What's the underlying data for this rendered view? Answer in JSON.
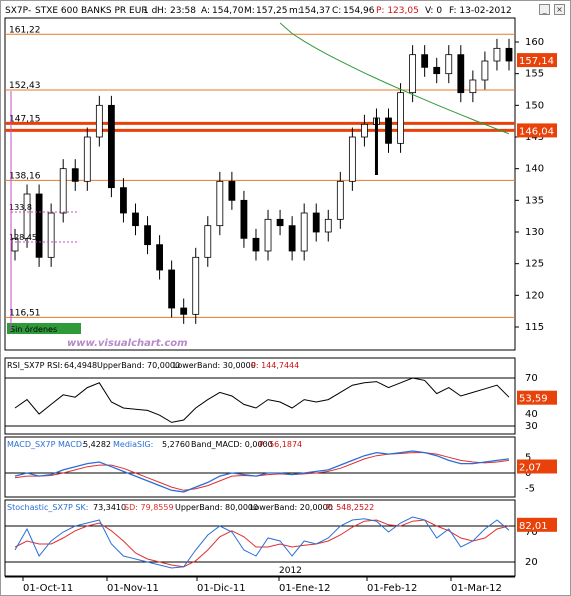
{
  "header": {
    "symbol": "SX7P",
    "name": "STXE 600 BANKS PR EUR",
    "timeframe": "1 d",
    "h_label": "H:",
    "h_value": "23:58",
    "a_label": "A:",
    "a_value": "154,70",
    "m_label": "M:",
    "m_value": "157,25",
    "mm_label": "m:",
    "mm_value": "154,37",
    "c_label": "C:",
    "c_value": "154,96",
    "p_text": "P: 123,05",
    "v_text": "V: 0",
    "f_text": "F: 13-02-2012",
    "window_buttons": [
      "minimize-icon",
      "close-icon"
    ]
  },
  "watermark": "www.visualchart.com",
  "sin_ordenes": "Sin órdenes",
  "level_labels": [
    "161,22",
    "152,43",
    "147,15",
    "138,16",
    "116,51"
  ],
  "left_labels": [
    "133,8",
    "128,45"
  ],
  "right_tags": {
    "price_last": "157,14",
    "price_level": "146,04",
    "rsi": "53,59",
    "macd": "2,07",
    "stoch": "82,01"
  },
  "axis_ticks": {
    "price": [
      "160",
      "155",
      "150",
      "145",
      "140",
      "135",
      "130",
      "125",
      "120",
      "115"
    ],
    "rsi": [
      "70",
      "40",
      "30"
    ],
    "macd": [
      "5",
      "0",
      "-5"
    ],
    "stoch": [
      "70",
      "20"
    ]
  },
  "x_ticks": [
    "01-Oct-11",
    "01-Nov-11",
    "01-Dic-11",
    "01-Ene-12",
    "01-Feb-12",
    "01-Mar-12"
  ],
  "year_label": "2012",
  "colors": {
    "level_line": "#e87a2a",
    "bold_level": "#e8420a",
    "ma_line": "#2e9a3a",
    "tag_bg": "#e8420a",
    "stoch_blue": "#2a6fd6",
    "stoch_red": "#e03030",
    "macd_blue": "#2a6fd6",
    "macd_red": "#e03030",
    "rsi_line": "#000000",
    "header_red": "#d01010"
  },
  "rsi_header": {
    "name": "RSI_SX7P RSI:",
    "value": "64,4948",
    "upper": "UpperBand: 70,0000",
    "lower": "LowerBand: 30,0000",
    "p": "P: 144,7444"
  },
  "macd_header": {
    "name": "MACD_SX7P MACD:",
    "value": "5,4282",
    "sig": "MediaSIG:",
    "sig_value": "5,2760",
    "band": "Band_MACD: 0,0000",
    "p": "P: 56,1874"
  },
  "stoch_header": {
    "name": "Stochastic_SX7P SK:",
    "value": "73,3410",
    "sd": "SD: 79,8559",
    "upper": "UpperBand: 80,0000",
    "lower": "LowerBand: 20,0000",
    "p": "P: 548,2522"
  },
  "chart_data": [
    {
      "type": "candlestick",
      "title": "SX7P - STXE 600 BANKS PR EUR",
      "x_range": [
        "2011-09-23",
        "2012-03-13"
      ],
      "ylim": [
        112,
        163
      ],
      "support_resistance_levels": [
        161.22,
        152.43,
        147.15,
        146.04,
        138.16,
        116.51
      ],
      "last_price": 157.14,
      "closes_approx": [
        129,
        136,
        126,
        133,
        140,
        138,
        145,
        150,
        137,
        133,
        131,
        128,
        124,
        118,
        117,
        126,
        131,
        138,
        135,
        129,
        127,
        132,
        131,
        127,
        133,
        130,
        132,
        138,
        145,
        147,
        148,
        144,
        152,
        158,
        156,
        155,
        158,
        152,
        154,
        157,
        159,
        157
      ],
      "moving_average": {
        "color": "#2e9a3a",
        "from_price": 163,
        "to_price": 145.5
      }
    },
    {
      "type": "line",
      "name": "RSI",
      "ylim": [
        25,
        75
      ],
      "bands": [
        70,
        30
      ],
      "last": 53.59,
      "values_approx": [
        45,
        52,
        40,
        48,
        56,
        54,
        62,
        66,
        50,
        45,
        44,
        43,
        39,
        33,
        35,
        45,
        52,
        58,
        55,
        48,
        45,
        52,
        50,
        45,
        52,
        50,
        52,
        58,
        64,
        66,
        67,
        62,
        66,
        70,
        68,
        57,
        62,
        55,
        58,
        61,
        64,
        54
      ]
    },
    {
      "type": "line",
      "name": "MACD",
      "ylim": [
        -7,
        7
      ],
      "series": [
        {
          "name": "MACD",
          "values_approx": [
            -1,
            0,
            -1,
            -0.5,
            1,
            2,
            3,
            3.5,
            2,
            0.5,
            -1,
            -2.5,
            -4,
            -5.5,
            -6,
            -4.5,
            -3,
            -1,
            0,
            -0.5,
            -1,
            0,
            0,
            -0.5,
            0,
            0.5,
            1,
            2.5,
            4,
            5.5,
            6.5,
            6,
            6.5,
            7,
            6.5,
            5.5,
            4,
            3,
            3,
            3.5,
            4,
            4.5
          ]
        },
        {
          "name": "MediaSIG",
          "values_approx": [
            -1.5,
            -1,
            -1,
            -0.8,
            0,
            1,
            2,
            2.5,
            2.5,
            1.5,
            0,
            -1.5,
            -3,
            -4.5,
            -5.5,
            -5,
            -4,
            -2.5,
            -1,
            -0.8,
            -1,
            -0.5,
            -0.3,
            -0.5,
            -0.3,
            0,
            0.5,
            1.5,
            3,
            4.5,
            5.5,
            6,
            6.2,
            6.5,
            6.5,
            6,
            5,
            4,
            3.5,
            3.2,
            3.5,
            4
          ]
        }
      ],
      "last": 2.07
    },
    {
      "type": "line",
      "name": "Stochastic",
      "ylim": [
        0,
        100
      ],
      "bands": [
        80,
        20
      ],
      "series": [
        {
          "name": "SK",
          "values_approx": [
            40,
            75,
            30,
            55,
            70,
            80,
            85,
            90,
            50,
            30,
            25,
            20,
            15,
            10,
            12,
            40,
            65,
            80,
            70,
            40,
            30,
            60,
            55,
            30,
            55,
            50,
            60,
            80,
            90,
            92,
            88,
            70,
            85,
            95,
            90,
            60,
            75,
            45,
            55,
            75,
            90,
            73
          ]
        },
        {
          "name": "SD",
          "values_approx": [
            45,
            55,
            50,
            50,
            60,
            72,
            80,
            85,
            72,
            55,
            35,
            25,
            20,
            15,
            12,
            22,
            40,
            62,
            72,
            62,
            45,
            45,
            50,
            45,
            48,
            50,
            55,
            65,
            78,
            88,
            90,
            82,
            80,
            88,
            90,
            80,
            72,
            60,
            55,
            60,
            75,
            80
          ]
        }
      ],
      "last": 82.01
    }
  ]
}
